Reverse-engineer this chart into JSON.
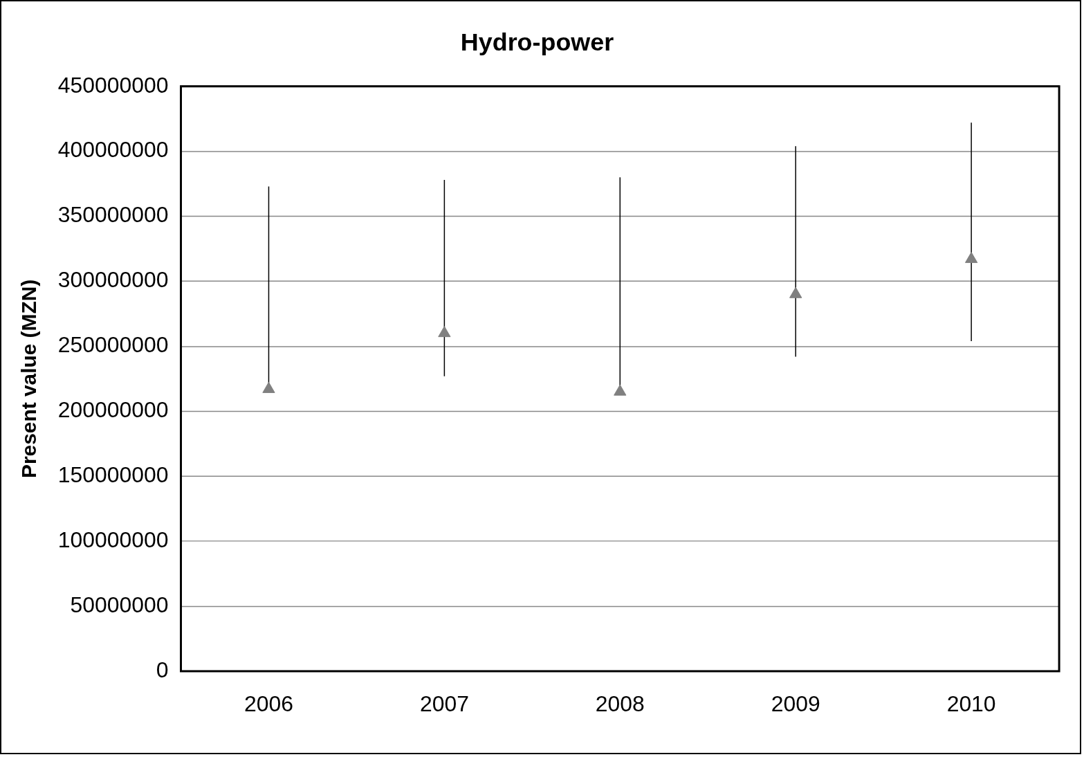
{
  "chart_data": {
    "type": "scatter",
    "title": "Hydro-power",
    "ylabel": "Present value (MZN)",
    "categories": [
      "2006",
      "2007",
      "2008",
      "2009",
      "2010"
    ],
    "series": [
      {
        "color": "#808080",
        "values": [
          217000000,
          260000000,
          215000000,
          290000000,
          317000000
        ],
        "errors": [
          [
            217000000,
            373000000
          ],
          [
            227000000,
            378000000
          ],
          [
            215000000,
            380000000
          ],
          [
            242000000,
            404000000
          ],
          [
            254000000,
            422000000
          ]
        ]
      }
    ],
    "ylim": [
      0,
      450000000
    ],
    "yticks": [
      0,
      50000000,
      100000000,
      150000000,
      200000000,
      250000000,
      300000000,
      350000000,
      400000000,
      450000000
    ],
    "grid": "y",
    "legend": false,
    "marker": "triangle"
  }
}
